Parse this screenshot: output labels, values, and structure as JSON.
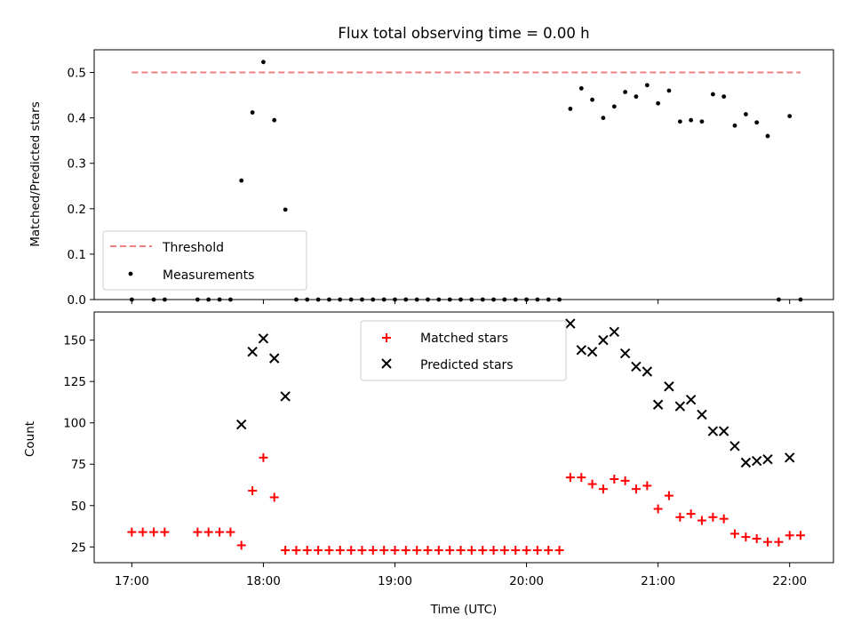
{
  "chart_data": [
    {
      "type": "scatter",
      "title": "Flux total observing time = 0.00 h",
      "xlabel": "",
      "ylabel": "Matched/Predicted stars",
      "xlim": [
        16.714,
        22.333
      ],
      "ylim": [
        0,
        0.55
      ],
      "yticks": [
        "0.0",
        "0.1",
        "0.2",
        "0.3",
        "0.4",
        "0.5"
      ],
      "ytick_values": [
        0,
        0.1,
        0.2,
        0.3,
        0.4,
        0.5
      ],
      "x_tick_values": [
        17,
        18,
        19,
        20,
        21,
        22
      ],
      "legend": {
        "placement": "lower-left",
        "entries": [
          {
            "label": "Threshold",
            "style": "dashed-line",
            "color": "#f08080"
          },
          {
            "label": "Measurements",
            "style": "dot",
            "color": "#000000"
          }
        ]
      },
      "threshold": {
        "name": "Threshold",
        "value": 0.5,
        "x_range": [
          17.0,
          22.083
        ],
        "color": "#f08080"
      },
      "series": [
        {
          "name": "Measurements",
          "color": "#000000",
          "x": [
            17.0,
            17.167,
            17.25,
            17.5,
            17.583,
            17.667,
            17.75,
            17.833,
            17.917,
            18.0,
            18.083,
            18.167,
            18.25,
            18.333,
            18.417,
            18.5,
            18.583,
            18.667,
            18.75,
            18.833,
            18.917,
            19.0,
            19.083,
            19.167,
            19.25,
            19.333,
            19.417,
            19.5,
            19.583,
            19.667,
            19.75,
            19.833,
            19.917,
            20.0,
            20.083,
            20.167,
            20.25,
            20.333,
            20.417,
            20.5,
            20.583,
            20.667,
            20.75,
            20.833,
            20.917,
            21.0,
            21.083,
            21.167,
            21.25,
            21.333,
            21.417,
            21.5,
            21.583,
            21.667,
            21.75,
            21.833,
            21.917,
            22.0,
            22.083
          ],
          "y": [
            0,
            0,
            0,
            0,
            0,
            0,
            0,
            0.262,
            0.412,
            0.523,
            0.395,
            0.198,
            0,
            0,
            0,
            0,
            0,
            0,
            0,
            0,
            0,
            0,
            0,
            0,
            0,
            0,
            0,
            0,
            0,
            0,
            0,
            0,
            0,
            0,
            0,
            0,
            0,
            0.42,
            0.465,
            0.44,
            0.4,
            0.425,
            0.457,
            0.447,
            0.472,
            0.432,
            0.46,
            0.392,
            0.395,
            0.392,
            0.452,
            0.447,
            0.383,
            0.408,
            0.39,
            0.36,
            0,
            0.404,
            0
          ]
        }
      ]
    },
    {
      "type": "scatter",
      "title": "",
      "xlabel": "Time (UTC)",
      "ylabel": "Count",
      "xlim": [
        16.714,
        22.333
      ],
      "ylim": [
        15.5,
        167
      ],
      "yticks": [
        "25",
        "50",
        "75",
        "100",
        "125",
        "150"
      ],
      "ytick_values": [
        25,
        50,
        75,
        100,
        125,
        150
      ],
      "x_tick_values": [
        17,
        18,
        19,
        20,
        21,
        22
      ],
      "xticks": [
        "17:00",
        "18:00",
        "19:00",
        "20:00",
        "21:00",
        "22:00"
      ],
      "legend": {
        "placement": "upper-center",
        "entries": [
          {
            "label": "Matched stars",
            "style": "plus",
            "color": "#ff0000"
          },
          {
            "label": "Predicted stars",
            "style": "x",
            "color": "#000000"
          }
        ]
      },
      "series": [
        {
          "name": "Matched stars",
          "marker": "plus",
          "color": "#ff0000",
          "x": [
            17.0,
            17.083,
            17.167,
            17.25,
            17.5,
            17.583,
            17.667,
            17.75,
            17.833,
            17.917,
            18.0,
            18.083,
            18.167,
            18.25,
            18.333,
            18.417,
            18.5,
            18.583,
            18.667,
            18.75,
            18.833,
            18.917,
            19.0,
            19.083,
            19.167,
            19.25,
            19.333,
            19.417,
            19.5,
            19.583,
            19.667,
            19.75,
            19.833,
            19.917,
            20.0,
            20.083,
            20.167,
            20.25,
            20.333,
            20.417,
            20.5,
            20.583,
            20.667,
            20.75,
            20.833,
            20.917,
            21.0,
            21.083,
            21.167,
            21.25,
            21.333,
            21.417,
            21.5,
            21.583,
            21.667,
            21.75,
            21.833,
            21.917,
            22.0,
            22.083
          ],
          "y": [
            34,
            34,
            34,
            34,
            34,
            34,
            34,
            34,
            26,
            59,
            79,
            55,
            23,
            23,
            23,
            23,
            23,
            23,
            23,
            23,
            23,
            23,
            23,
            23,
            23,
            23,
            23,
            23,
            23,
            23,
            23,
            23,
            23,
            23,
            23,
            23,
            23,
            23,
            67,
            67,
            63,
            60,
            66,
            65,
            60,
            62,
            48,
            56,
            43,
            45,
            41,
            43,
            42,
            33,
            31,
            30,
            28,
            28,
            32,
            32
          ]
        },
        {
          "name": "Predicted stars",
          "marker": "x",
          "color": "#000000",
          "x": [
            17.833,
            17.917,
            18.0,
            18.083,
            18.167,
            20.333,
            20.417,
            20.5,
            20.583,
            20.667,
            20.75,
            20.833,
            20.917,
            21.0,
            21.083,
            21.167,
            21.25,
            21.333,
            21.417,
            21.5,
            21.583,
            21.667,
            21.75,
            21.833,
            22.0
          ],
          "y": [
            99,
            143,
            151,
            139,
            116,
            160,
            144,
            143,
            150,
            155,
            142,
            134,
            131,
            111,
            122,
            110,
            114,
            105,
            95,
            95,
            86,
            76,
            77,
            78,
            79
          ]
        }
      ]
    }
  ]
}
